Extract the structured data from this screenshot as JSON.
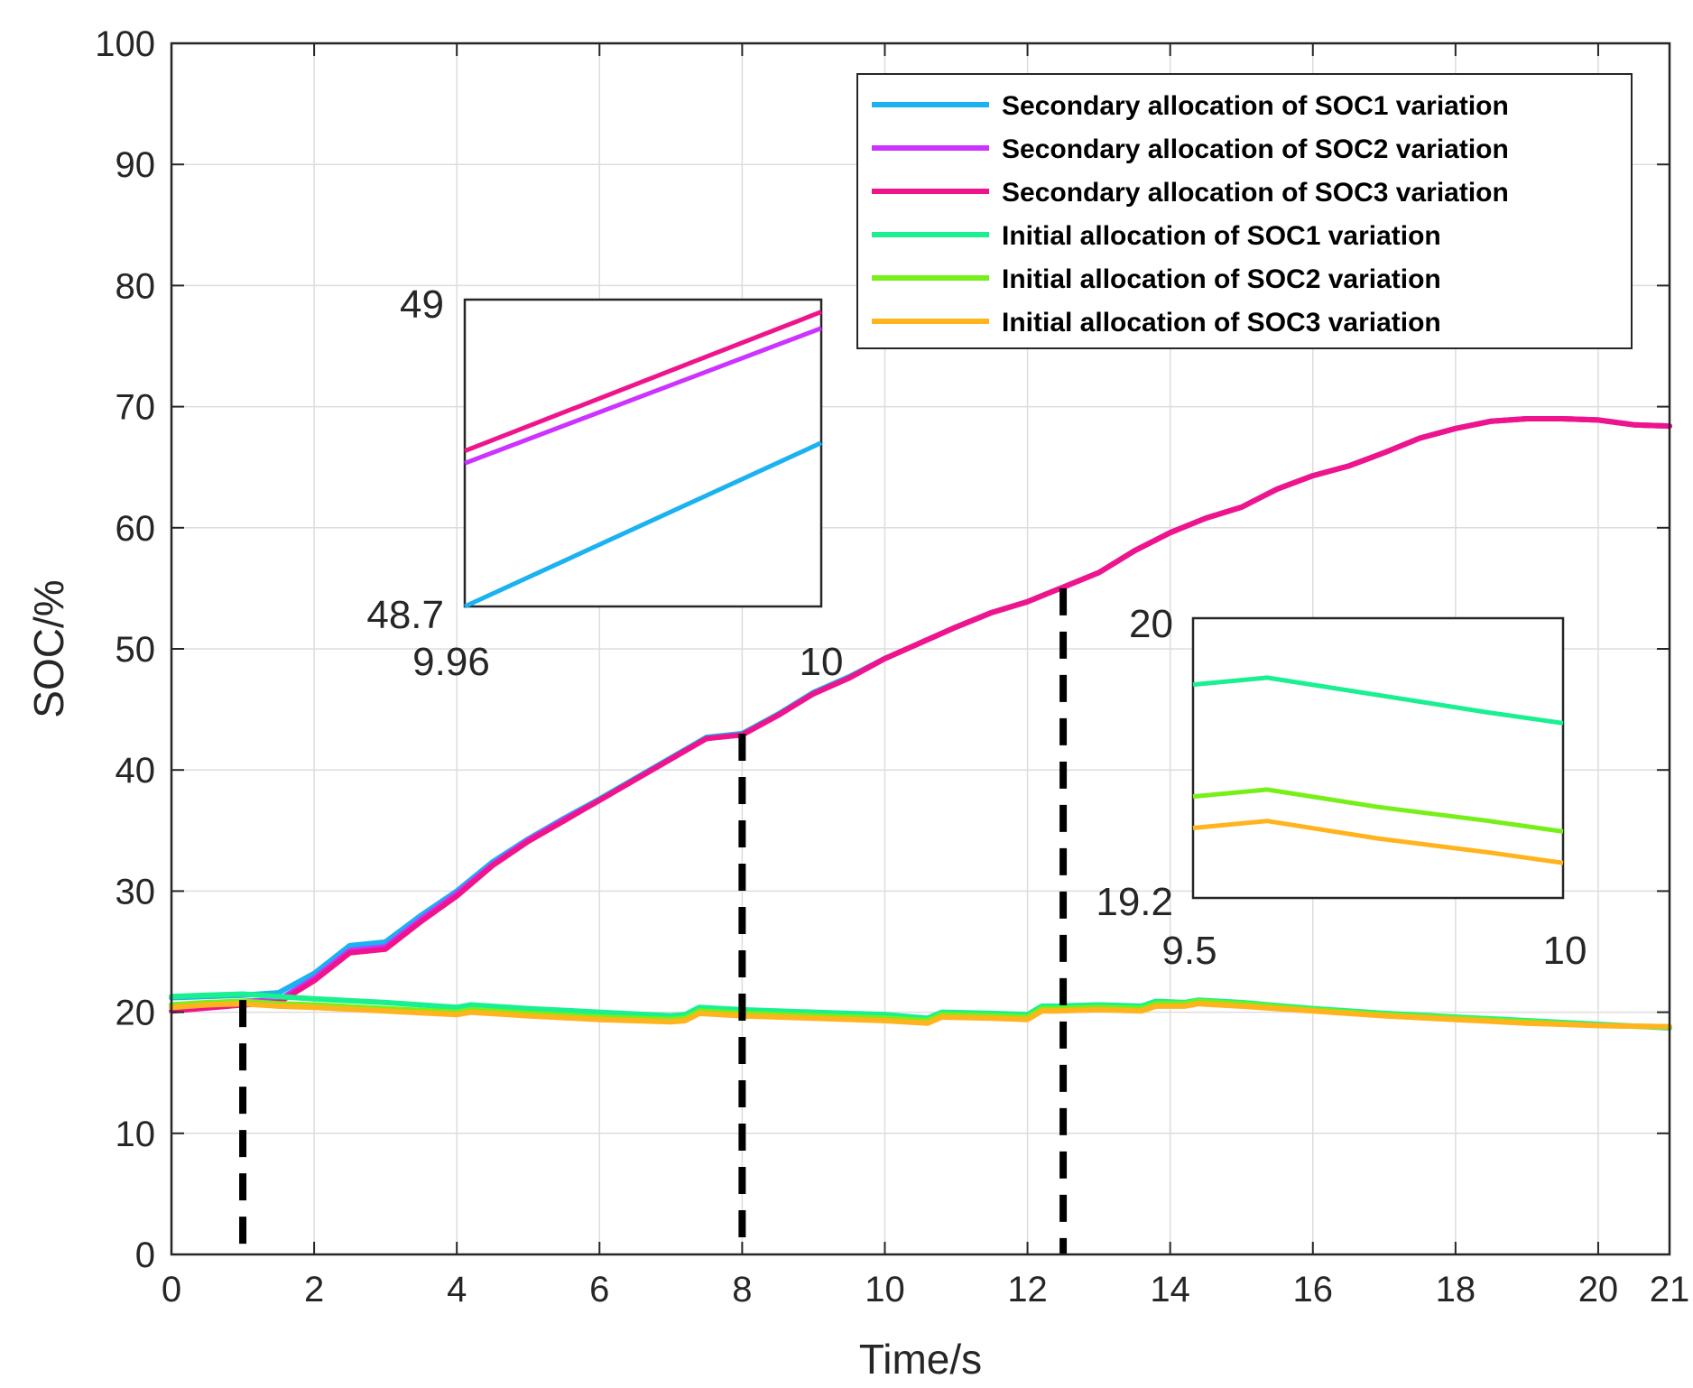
{
  "chart_data": {
    "type": "line",
    "title": "",
    "xlabel": "Time/s",
    "ylabel": "SOC/%",
    "xlim": [
      0,
      21
    ],
    "ylim": [
      0,
      100
    ],
    "xticks": [
      0,
      2,
      4,
      6,
      8,
      10,
      12,
      14,
      16,
      18,
      20,
      21
    ],
    "yticks": [
      0,
      10,
      20,
      30,
      40,
      50,
      60,
      70,
      80,
      90,
      100
    ],
    "grid": true,
    "legend_position": "top-right",
    "series": [
      {
        "name": "Secondary allocation of SOC1 variation",
        "color": "#1AB2F0",
        "x": [
          0,
          1,
          1.5,
          2,
          2.5,
          3,
          3.5,
          4,
          4.5,
          5,
          5.5,
          6,
          6.5,
          7,
          7.5,
          8,
          8.5,
          9,
          9.5,
          10,
          10.5,
          11,
          11.5,
          12,
          12.5,
          13,
          13.5,
          14,
          14.5,
          15,
          15.5,
          16,
          16.5,
          17,
          17.5,
          18,
          18.5,
          19,
          19.5,
          20,
          20.5,
          21
        ],
        "y": [
          21.2,
          21.4,
          21.6,
          23.2,
          25.5,
          25.8,
          28.0,
          30.0,
          32.4,
          34.3,
          36.0,
          37.6,
          39.3,
          41.0,
          42.7,
          43.0,
          44.6,
          46.4,
          47.7,
          49.2,
          50.5,
          51.8,
          53.0,
          53.9,
          55.1,
          56.3,
          58.1,
          59.6,
          60.8,
          61.7,
          63.2,
          64.3,
          65.1,
          66.2,
          67.4,
          68.2,
          68.8,
          69.0,
          69.0,
          68.9,
          68.5,
          68.4
        ]
      },
      {
        "name": "Secondary allocation of SOC2 variation",
        "color": "#CC33FF",
        "x": [
          0,
          1,
          1.5,
          2,
          2.5,
          3,
          3.5,
          4,
          4.5,
          5,
          5.5,
          6,
          6.5,
          7,
          7.5,
          8,
          8.5,
          9,
          9.5,
          10,
          10.5,
          11,
          11.5,
          12,
          12.5,
          13,
          13.5,
          14,
          14.5,
          15,
          15.5,
          16,
          16.5,
          17,
          17.5,
          18,
          18.5,
          19,
          19.5,
          20,
          20.5,
          21
        ],
        "y": [
          20.6,
          20.9,
          21.0,
          22.8,
          25.1,
          25.4,
          27.7,
          29.8,
          32.2,
          34.2,
          35.9,
          37.5,
          39.2,
          40.9,
          42.6,
          42.9,
          44.5,
          46.3,
          47.6,
          49.2,
          50.5,
          51.8,
          53.0,
          53.9,
          55.1,
          56.3,
          58.1,
          59.6,
          60.8,
          61.7,
          63.2,
          64.3,
          65.1,
          66.2,
          67.4,
          68.2,
          68.8,
          69.0,
          69.0,
          68.9,
          68.5,
          68.4
        ]
      },
      {
        "name": "Secondary allocation of SOC3 variation",
        "color": "#F0148C",
        "x": [
          0,
          1,
          1.5,
          2,
          2.5,
          3,
          3.5,
          4,
          4.5,
          5,
          5.5,
          6,
          6.5,
          7,
          7.5,
          8,
          8.5,
          9,
          9.5,
          10,
          10.5,
          11,
          11.5,
          12,
          12.5,
          13,
          13.5,
          14,
          14.5,
          15,
          15.5,
          16,
          16.5,
          17,
          17.5,
          18,
          18.5,
          19,
          19.5,
          20,
          20.5,
          21
        ],
        "y": [
          20.1,
          20.6,
          20.8,
          22.6,
          24.9,
          25.2,
          27.5,
          29.6,
          32.1,
          34.1,
          35.8,
          37.5,
          39.2,
          40.9,
          42.6,
          42.9,
          44.5,
          46.3,
          47.6,
          49.2,
          50.5,
          51.8,
          53.0,
          53.9,
          55.1,
          56.3,
          58.1,
          59.6,
          60.8,
          61.7,
          63.2,
          64.3,
          65.1,
          66.2,
          67.4,
          68.2,
          68.8,
          69.0,
          69.0,
          68.9,
          68.5,
          68.4
        ]
      },
      {
        "name": "Initial allocation of SOC1 variation",
        "color": "#19F090",
        "x": [
          0,
          0.5,
          1,
          1.5,
          2,
          3,
          4,
          4.2,
          5,
          6,
          7,
          7.2,
          7.4,
          8,
          9,
          10,
          10.6,
          10.8,
          11.5,
          12,
          12.2,
          12.4,
          13,
          13.6,
          13.8,
          14.2,
          14.4,
          15,
          16,
          17,
          18,
          19,
          20,
          21
        ],
        "y": [
          21.3,
          21.4,
          21.5,
          21.3,
          21.1,
          20.8,
          20.4,
          20.6,
          20.3,
          20.0,
          19.7,
          19.8,
          20.4,
          20.2,
          20.0,
          19.8,
          19.5,
          20.0,
          19.9,
          19.8,
          20.5,
          20.5,
          20.6,
          20.5,
          20.9,
          20.8,
          21.0,
          20.8,
          20.3,
          19.9,
          19.6,
          19.3,
          19.0,
          18.7
        ]
      },
      {
        "name": "Initial allocation of SOC2 variation",
        "color": "#77F019",
        "x": [
          0,
          0.5,
          1,
          1.5,
          2,
          3,
          4,
          4.2,
          5,
          6,
          7,
          7.2,
          7.4,
          8,
          9,
          10,
          10.6,
          10.8,
          11.5,
          12,
          12.2,
          12.4,
          13,
          13.6,
          13.8,
          14.2,
          14.4,
          15,
          16,
          17,
          18,
          19,
          20,
          21
        ],
        "y": [
          20.6,
          20.8,
          20.9,
          20.7,
          20.6,
          20.3,
          20.0,
          20.2,
          19.9,
          19.6,
          19.4,
          19.5,
          20.1,
          19.9,
          19.7,
          19.5,
          19.3,
          19.8,
          19.7,
          19.6,
          20.3,
          20.3,
          20.4,
          20.3,
          20.7,
          20.7,
          20.9,
          20.7,
          20.2,
          19.8,
          19.5,
          19.2,
          18.9,
          18.8
        ]
      },
      {
        "name": "Initial allocation of SOC3 variation",
        "color": "#FFB41E",
        "x": [
          0,
          0.5,
          1,
          1.5,
          2,
          3,
          4,
          4.2,
          5,
          6,
          7,
          7.2,
          7.4,
          8,
          9,
          10,
          10.6,
          10.8,
          11.5,
          12,
          12.2,
          12.4,
          13,
          13.6,
          13.8,
          14.2,
          14.4,
          15,
          16,
          17,
          18,
          19,
          20,
          21
        ],
        "y": [
          20.4,
          20.6,
          20.7,
          20.5,
          20.4,
          20.1,
          19.8,
          20.0,
          19.7,
          19.4,
          19.2,
          19.3,
          19.9,
          19.7,
          19.5,
          19.3,
          19.1,
          19.6,
          19.5,
          19.4,
          20.1,
          20.1,
          20.2,
          20.1,
          20.5,
          20.5,
          20.7,
          20.5,
          20.1,
          19.7,
          19.4,
          19.1,
          18.9,
          18.8
        ]
      }
    ],
    "markers": [
      {
        "x": 1,
        "y_top": 21
      },
      {
        "x": 8,
        "y_top": 43
      },
      {
        "x": 12.5,
        "y_top": 55
      }
    ],
    "insets": [
      {
        "xlim": [
          9.96,
          10
        ],
        "ylim": [
          48.7,
          49
        ],
        "x_labels": [
          "9.96",
          "10"
        ],
        "y_labels": [
          "49",
          "48.7"
        ],
        "series": [
          {
            "name": "Secondary allocation of SOC1 variation",
            "color": "#1AB2F0",
            "x": [
              9.96,
              10
            ],
            "y": [
              48.7,
              48.86
            ]
          },
          {
            "name": "Secondary allocation of SOC2 variation",
            "color": "#CC33FF",
            "x": [
              9.96,
              10
            ],
            "y": [
              48.84,
              48.972
            ]
          },
          {
            "name": "Secondary allocation of SOC3 variation",
            "color": "#F0148C",
            "x": [
              9.96,
              10
            ],
            "y": [
              48.852,
              48.988
            ]
          }
        ]
      },
      {
        "xlim": [
          9.5,
          10
        ],
        "ylim": [
          19.2,
          20
        ],
        "x_labels": [
          "9.5",
          "10"
        ],
        "y_labels": [
          "20",
          "19.2"
        ],
        "series": [
          {
            "name": "Initial allocation of SOC1 variation",
            "color": "#19F090",
            "x": [
              9.5,
              9.6,
              9.75,
              9.9,
              10
            ],
            "y": [
              19.81,
              19.83,
              19.78,
              19.73,
              19.7
            ]
          },
          {
            "name": "Initial allocation of SOC2 variation",
            "color": "#77F019",
            "x": [
              9.5,
              9.6,
              9.75,
              9.9,
              10
            ],
            "y": [
              19.49,
              19.51,
              19.46,
              19.42,
              19.39
            ]
          },
          {
            "name": "Initial allocation of SOC3 variation",
            "color": "#FFB41E",
            "x": [
              9.5,
              9.6,
              9.75,
              9.9,
              10
            ],
            "y": [
              19.4,
              19.42,
              19.37,
              19.33,
              19.3
            ]
          }
        ]
      }
    ]
  }
}
